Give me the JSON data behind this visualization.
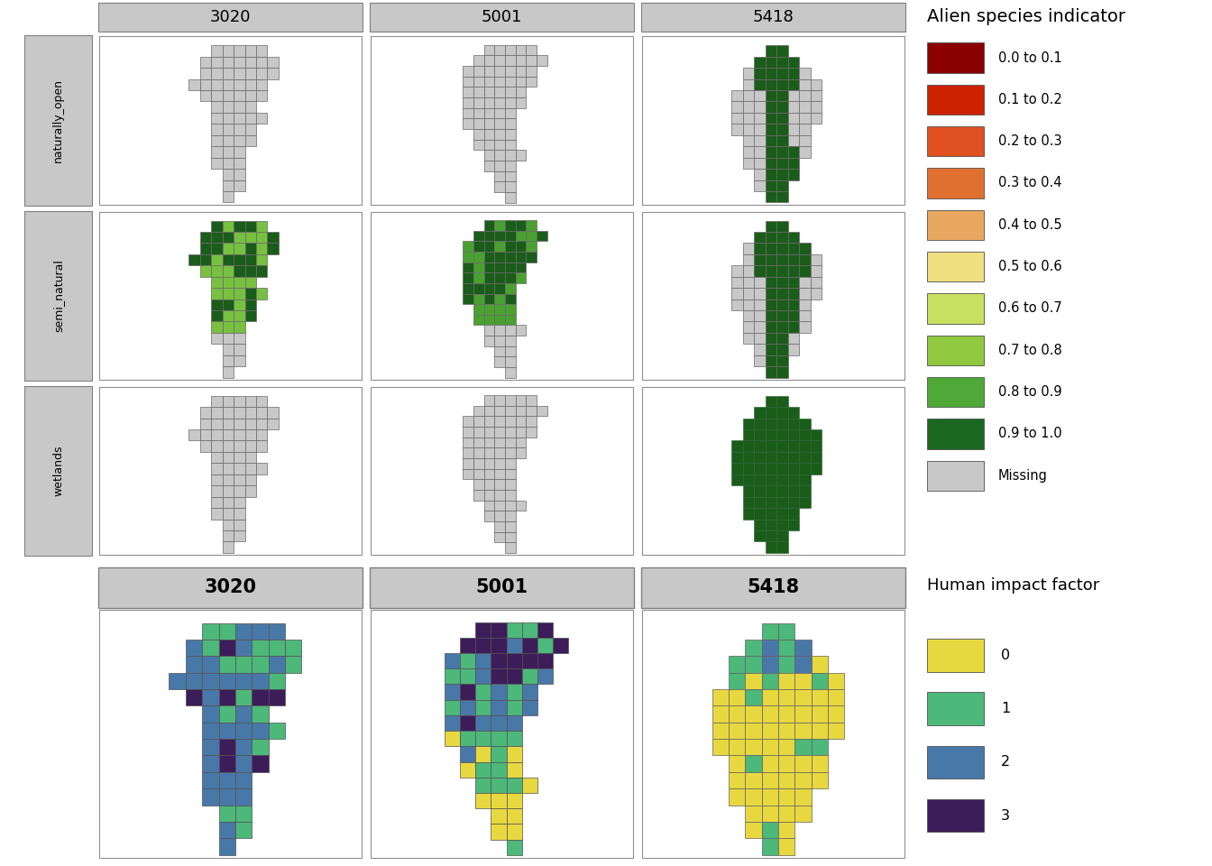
{
  "title_top": "Alien species indicator",
  "title_bottom": "Human impact factor",
  "columns": [
    "3020",
    "5001",
    "5418"
  ],
  "rows_top": [
    "naturally_open",
    "semi_natural",
    "wetlands"
  ],
  "alien_legend_labels": [
    "0.0 to 0.1",
    "0.1 to 0.2",
    "0.2 to 0.3",
    "0.3 to 0.4",
    "0.4 to 0.5",
    "0.5 to 0.6",
    "0.6 to 0.7",
    "0.7 to 0.8",
    "0.8 to 0.9",
    "0.9 to 1.0",
    "Missing"
  ],
  "alien_colors": [
    "#8B0000",
    "#CC2200",
    "#E05020",
    "#E07030",
    "#E8A860",
    "#F0E080",
    "#C8E060",
    "#90C840",
    "#50A838",
    "#1A6820",
    "#C8C8C8"
  ],
  "human_legend_labels": [
    "0",
    "1",
    "2",
    "3"
  ],
  "human_colors": [
    "#E8D840",
    "#4CB87A",
    "#4878A8",
    "#3D1C5A"
  ],
  "gray": "#C8C8C8",
  "dark_gray": "#808080",
  "missing": "#C8C8C8",
  "dark_green": "#1A5C1A",
  "med_green": "#4AA030",
  "light_green": "#78C040"
}
